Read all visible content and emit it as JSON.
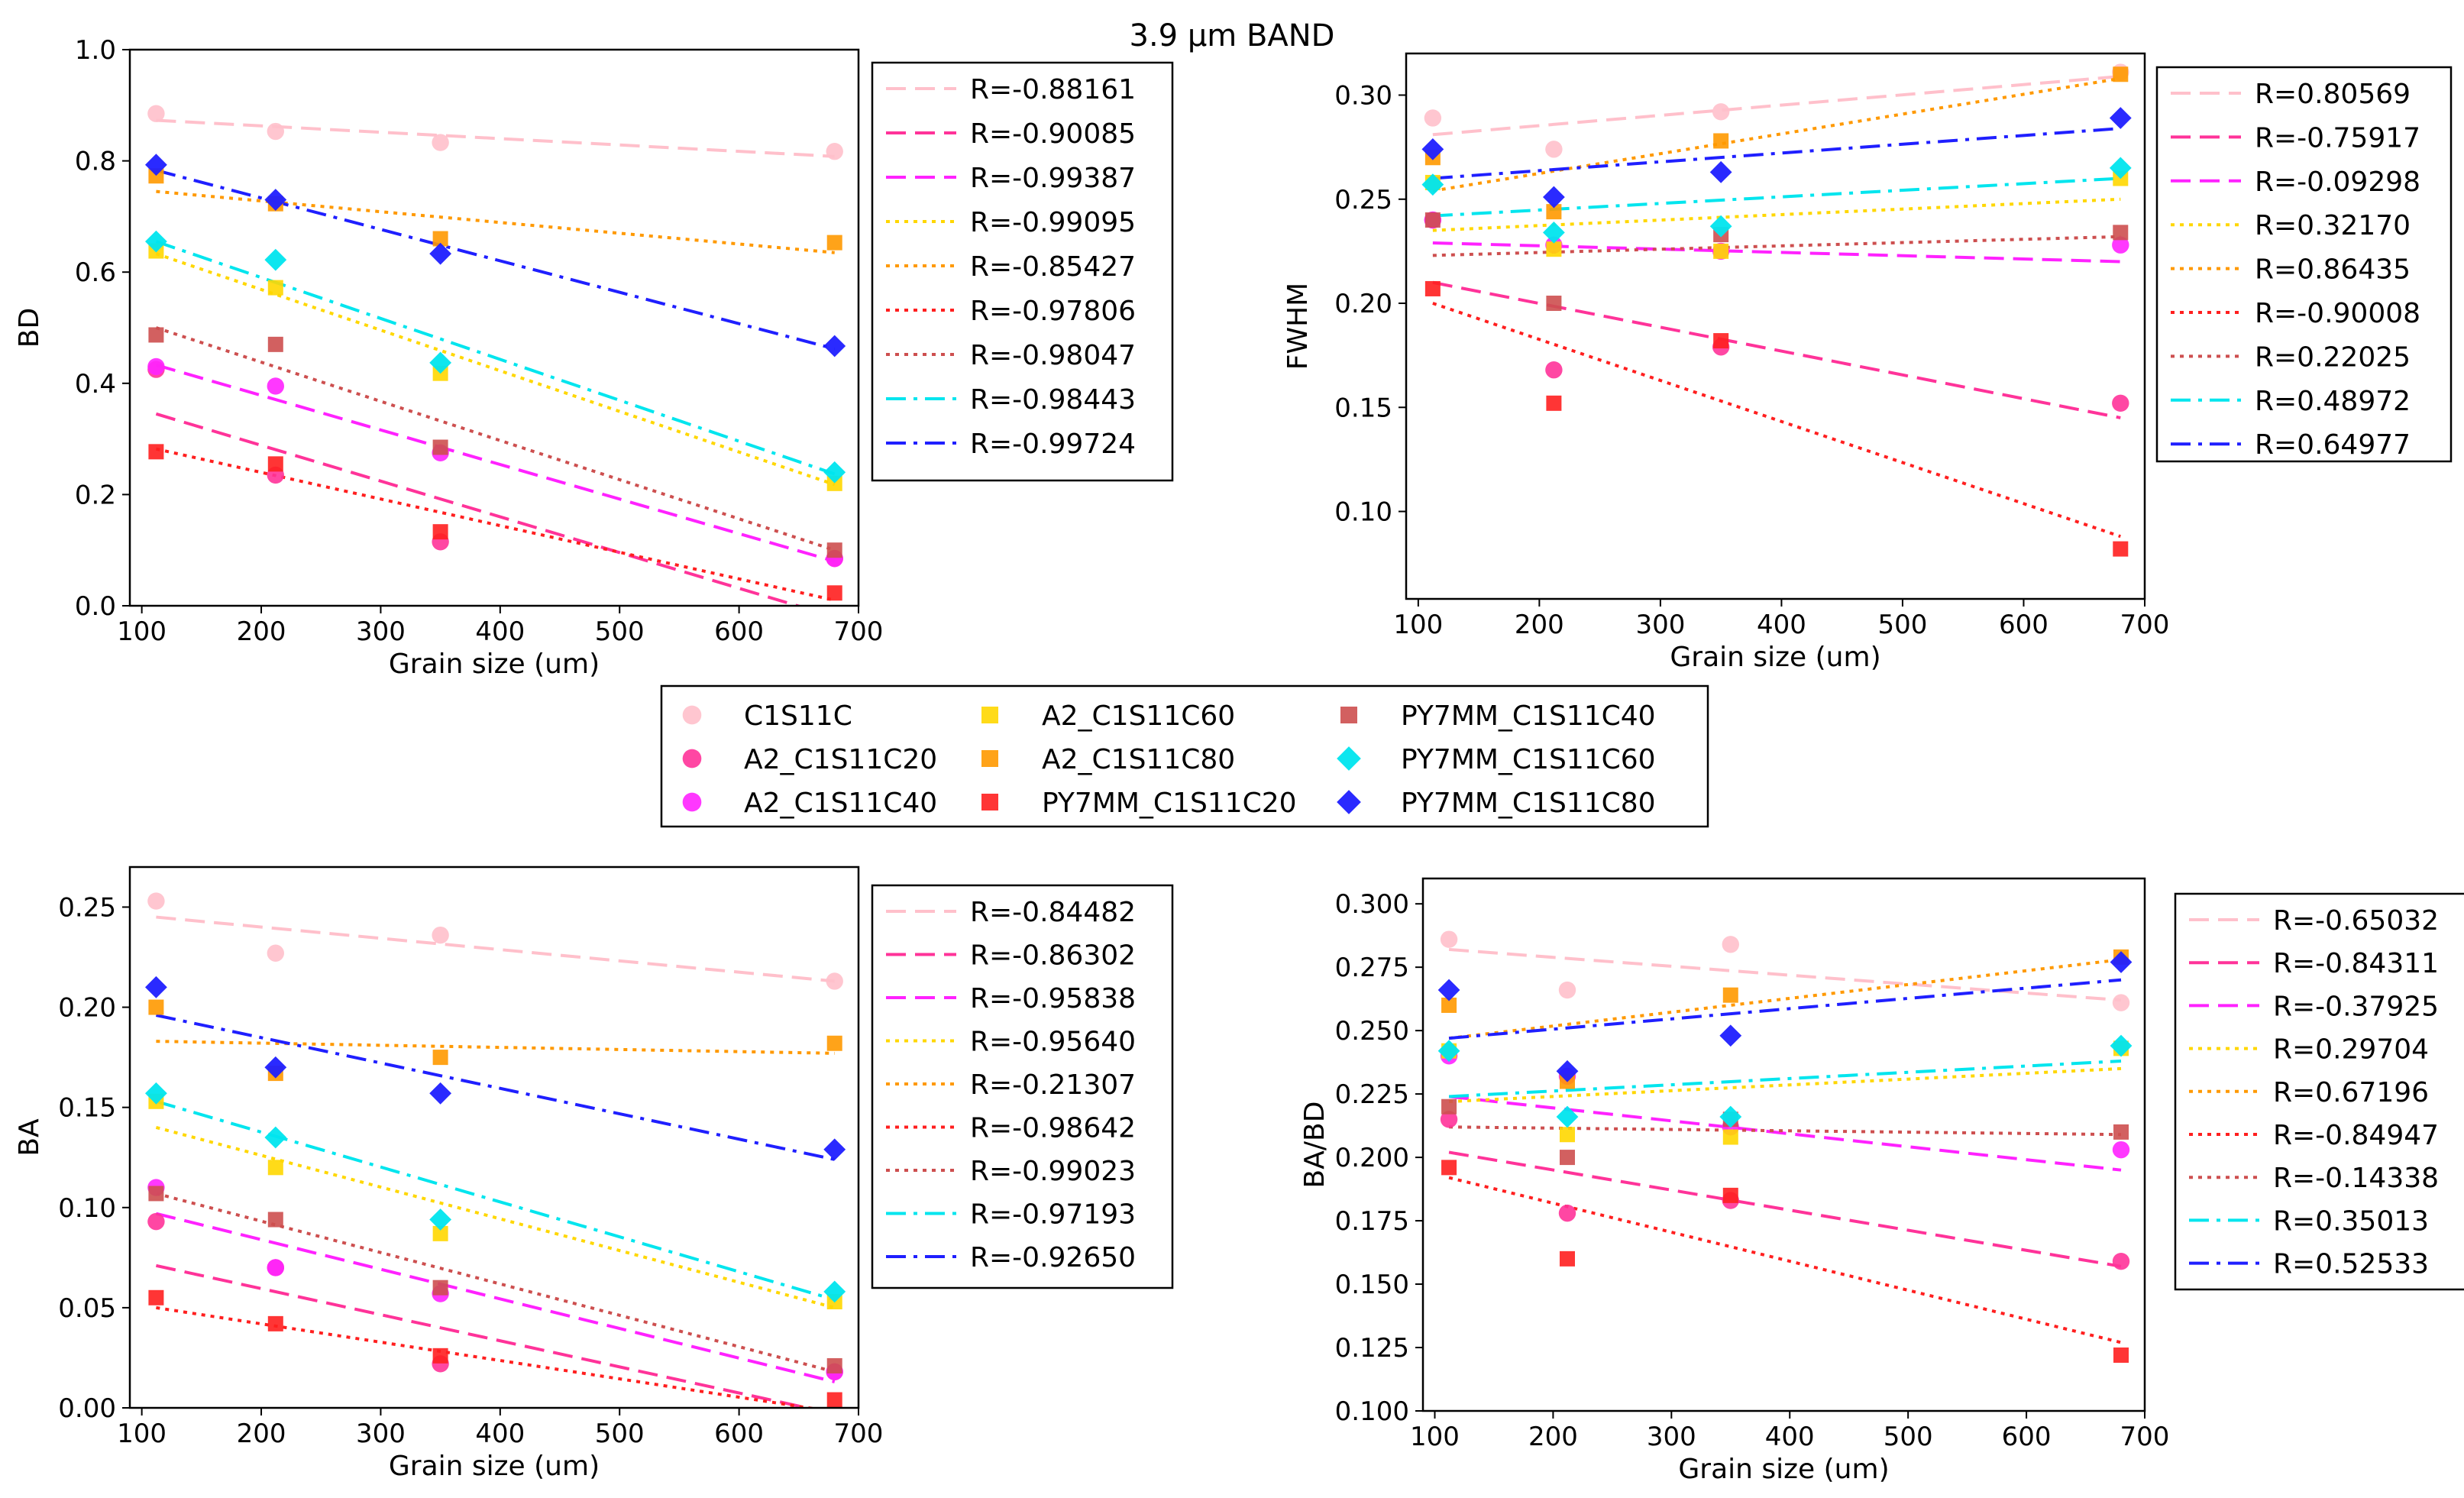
{
  "title": "3.9 µm BAND",
  "series_meta": [
    {
      "name": "C1S11C",
      "color": "#FFC0CB",
      "marker": "circle",
      "line": "dash"
    },
    {
      "name": "A2_C1S11C20",
      "color": "#FF3399",
      "marker": "circle",
      "line": "dash"
    },
    {
      "name": "A2_C1S11C40",
      "color": "#FF22FF",
      "marker": "circle",
      "line": "dash"
    },
    {
      "name": "A2_C1S11C60",
      "color": "#FFD700",
      "marker": "square",
      "line": "dot"
    },
    {
      "name": "A2_C1S11C80",
      "color": "#FF9900",
      "marker": "square",
      "line": "dot"
    },
    {
      "name": "PY7MM_C1S11C20",
      "color": "#FF1F1F",
      "marker": "square",
      "line": "dot"
    },
    {
      "name": "PY7MM_C1S11C40",
      "color": "#CD4F4F",
      "marker": "square",
      "line": "dot"
    },
    {
      "name": "PY7MM_C1S11C60",
      "color": "#00E5EE",
      "marker": "diamond",
      "line": "dashdot"
    },
    {
      "name": "PY7MM_C1S11C80",
      "color": "#1F1FFF",
      "marker": "diamond",
      "line": "dashdot"
    }
  ],
  "chart_data": [
    {
      "type": "scatter",
      "xlabel": "Grain size (um)",
      "ylabel": "BD",
      "xlim": [
        90,
        700
      ],
      "ylim": [
        0,
        1.0
      ],
      "xticks": [
        "100",
        "200",
        "300",
        "400",
        "500",
        "600",
        "700"
      ],
      "yticks": [
        "0.0",
        "0.2",
        "0.4",
        "0.6",
        "0.8",
        "1.0"
      ],
      "ytick_values": [
        0,
        0.2,
        0.4,
        0.6,
        0.8,
        1.0
      ],
      "x": [
        112,
        212,
        350,
        680
      ],
      "series": [
        {
          "name": "C1S11C",
          "values": [
            0.885,
            0.853,
            0.833,
            0.817
          ],
          "fit": [
            0.873,
            0.808
          ],
          "r": "R=-0.88161"
        },
        {
          "name": "A2_C1S11C20",
          "values": [
            0.425,
            0.235,
            0.115,
            0.085
          ],
          "fit": [
            0.345,
            -0.02
          ],
          "r": "R=-0.90085"
        },
        {
          "name": "A2_C1S11C40",
          "values": [
            0.43,
            0.395,
            0.275,
            0.085
          ],
          "fit": [
            0.433,
            0.08
          ],
          "r": "R=-0.99387"
        },
        {
          "name": "A2_C1S11C60",
          "values": [
            0.638,
            0.572,
            0.418,
            0.22
          ],
          "fit": [
            0.633,
            0.218
          ],
          "r": "R=-0.99095"
        },
        {
          "name": "A2_C1S11C80",
          "values": [
            0.773,
            0.723,
            0.66,
            0.653
          ],
          "fit": [
            0.745,
            0.635
          ],
          "r": "R=-0.85427"
        },
        {
          "name": "PY7MM_C1S11C20",
          "values": [
            0.277,
            0.255,
            0.133,
            0.023
          ],
          "fit": [
            0.282,
            0.01
          ],
          "r": "R=-0.97806"
        },
        {
          "name": "PY7MM_C1S11C40",
          "values": [
            0.487,
            0.47,
            0.285,
            0.1
          ],
          "fit": [
            0.5,
            0.1
          ],
          "r": "R=-0.98047"
        },
        {
          "name": "PY7MM_C1S11C60",
          "values": [
            0.655,
            0.622,
            0.437,
            0.24
          ],
          "fit": [
            0.655,
            0.237
          ],
          "r": "R=-0.98443"
        },
        {
          "name": "PY7MM_C1S11C80",
          "values": [
            0.793,
            0.73,
            0.633,
            0.467
          ],
          "fit": [
            0.783,
            0.462
          ],
          "r": "R=-0.99724"
        }
      ]
    },
    {
      "type": "scatter",
      "xlabel": "Grain size (um)",
      "ylabel": "FWHM",
      "xlim": [
        90,
        700
      ],
      "ylim": [
        0.058,
        0.32
      ],
      "xticks": [
        "100",
        "200",
        "300",
        "400",
        "500",
        "600",
        "700"
      ],
      "yticks": [
        "0.10",
        "0.15",
        "0.20",
        "0.25",
        "0.30"
      ],
      "ytick_values": [
        0.1,
        0.15,
        0.2,
        0.25,
        0.3
      ],
      "x": [
        112,
        212,
        350,
        680
      ],
      "series": [
        {
          "name": "C1S11C",
          "values": [
            0.289,
            0.274,
            0.292,
            0.311
          ],
          "fit": [
            0.281,
            0.309
          ],
          "r": "R=0.80569"
        },
        {
          "name": "A2_C1S11C20",
          "values": [
            0.24,
            0.168,
            0.179,
            0.152
          ],
          "fit": [
            0.21,
            0.145
          ],
          "r": "R=-0.75917"
        },
        {
          "name": "A2_C1S11C40",
          "values": [
            0.24,
            0.228,
            0.225,
            0.228
          ],
          "fit": [
            0.229,
            0.22
          ],
          "r": "R=-0.09298"
        },
        {
          "name": "A2_C1S11C60",
          "values": [
            0.258,
            0.226,
            0.225,
            0.26
          ],
          "fit": [
            0.235,
            0.25
          ],
          "r": "R=0.32170"
        },
        {
          "name": "A2_C1S11C80",
          "values": [
            0.27,
            0.244,
            0.278,
            0.31
          ],
          "fit": [
            0.254,
            0.308
          ],
          "r": "R=0.86435"
        },
        {
          "name": "PY7MM_C1S11C20",
          "values": [
            0.207,
            0.152,
            0.182,
            0.082
          ],
          "fit": [
            0.2,
            0.088
          ],
          "r": "R=-0.90008"
        },
        {
          "name": "PY7MM_C1S11C40",
          "values": [
            0.24,
            0.2,
            0.233,
            0.234
          ],
          "fit": [
            0.223,
            0.232
          ],
          "r": "R=0.22025"
        },
        {
          "name": "PY7MM_C1S11C60",
          "values": [
            0.257,
            0.234,
            0.237,
            0.265
          ],
          "fit": [
            0.242,
            0.26
          ],
          "r": "R=0.48972"
        },
        {
          "name": "PY7MM_C1S11C80",
          "values": [
            0.274,
            0.251,
            0.263,
            0.289
          ],
          "fit": [
            0.26,
            0.284
          ],
          "r": "R=0.64977"
        }
      ]
    },
    {
      "type": "scatter",
      "xlabel": "Grain size (um)",
      "ylabel": "BA",
      "xlim": [
        90,
        700
      ],
      "ylim": [
        0,
        0.27
      ],
      "xticks": [
        "100",
        "200",
        "300",
        "400",
        "500",
        "600",
        "700"
      ],
      "yticks": [
        "0.00",
        "0.05",
        "0.10",
        "0.15",
        "0.20",
        "0.25"
      ],
      "ytick_values": [
        0,
        0.05,
        0.1,
        0.15,
        0.2,
        0.25
      ],
      "x": [
        112,
        212,
        350,
        680
      ],
      "series": [
        {
          "name": "C1S11C",
          "values": [
            0.253,
            0.227,
            0.236,
            0.213
          ],
          "fit": [
            0.245,
            0.213
          ],
          "r": "R=-0.84482"
        },
        {
          "name": "A2_C1S11C20",
          "values": [
            0.093,
            0.07,
            0.022,
            0.018
          ],
          "fit": [
            0.071,
            -0.003
          ],
          "r": "R=-0.86302"
        },
        {
          "name": "A2_C1S11C40",
          "values": [
            0.11,
            0.07,
            0.057,
            0.018
          ],
          "fit": [
            0.097,
            0.013
          ],
          "r": "R=-0.95838"
        },
        {
          "name": "A2_C1S11C60",
          "values": [
            0.153,
            0.12,
            0.087,
            0.053
          ],
          "fit": [
            0.14,
            0.05
          ],
          "r": "R=-0.95640"
        },
        {
          "name": "A2_C1S11C80",
          "values": [
            0.2,
            0.167,
            0.175,
            0.182
          ],
          "fit": [
            0.183,
            0.177
          ],
          "r": "R=-0.21307"
        },
        {
          "name": "PY7MM_C1S11C20",
          "values": [
            0.055,
            0.042,
            0.026,
            0.004
          ],
          "fit": [
            0.05,
            -0.002
          ],
          "r": "R=-0.98642"
        },
        {
          "name": "PY7MM_C1S11C40",
          "values": [
            0.107,
            0.094,
            0.06,
            0.021
          ],
          "fit": [
            0.107,
            0.018
          ],
          "r": "R=-0.99023"
        },
        {
          "name": "PY7MM_C1S11C60",
          "values": [
            0.157,
            0.135,
            0.094,
            0.058
          ],
          "fit": [
            0.153,
            0.054
          ],
          "r": "R=-0.97193"
        },
        {
          "name": "PY7MM_C1S11C80",
          "values": [
            0.21,
            0.17,
            0.157,
            0.129
          ],
          "fit": [
            0.196,
            0.124
          ],
          "r": "R=-0.92650"
        }
      ]
    },
    {
      "type": "scatter",
      "xlabel": "Grain size (um)",
      "ylabel": "BA/BD",
      "xlim": [
        90,
        700
      ],
      "ylim": [
        0.1,
        0.31
      ],
      "xticks": [
        "100",
        "200",
        "300",
        "400",
        "500",
        "600",
        "700"
      ],
      "yticks": [
        "0.100",
        "0.125",
        "0.150",
        "0.175",
        "0.200",
        "0.225",
        "0.250",
        "0.275",
        "0.300"
      ],
      "ytick_values": [
        0.1,
        0.125,
        0.15,
        0.175,
        0.2,
        0.225,
        0.25,
        0.275,
        0.3
      ],
      "x": [
        112,
        212,
        350,
        680
      ],
      "series": [
        {
          "name": "C1S11C",
          "values": [
            0.286,
            0.266,
            0.284,
            0.261
          ],
          "fit": [
            0.282,
            0.262
          ],
          "r": "R=-0.65032"
        },
        {
          "name": "A2_C1S11C20",
          "values": [
            0.215,
            0.178,
            0.183,
            0.159
          ],
          "fit": [
            0.202,
            0.157
          ],
          "r": "R=-0.84311"
        },
        {
          "name": "A2_C1S11C40",
          "values": [
            0.24,
            0.232,
            0.212,
            0.203
          ],
          "fit": [
            0.224,
            0.195
          ],
          "r": "R=-0.37925"
        },
        {
          "name": "A2_C1S11C60",
          "values": [
            0.242,
            0.209,
            0.208,
            0.243
          ],
          "fit": [
            0.222,
            0.235
          ],
          "r": "R=0.29704"
        },
        {
          "name": "A2_C1S11C80",
          "values": [
            0.26,
            0.23,
            0.264,
            0.279
          ],
          "fit": [
            0.247,
            0.278
          ],
          "r": "R=0.67196"
        },
        {
          "name": "PY7MM_C1S11C20",
          "values": [
            0.196,
            0.16,
            0.185,
            0.122
          ],
          "fit": [
            0.192,
            0.127
          ],
          "r": "R=-0.84947"
        },
        {
          "name": "PY7MM_C1S11C40",
          "values": [
            0.22,
            0.2,
            0.215,
            0.21
          ],
          "fit": [
            0.212,
            0.209
          ],
          "r": "R=-0.14338"
        },
        {
          "name": "PY7MM_C1S11C60",
          "values": [
            0.242,
            0.216,
            0.216,
            0.244
          ],
          "fit": [
            0.224,
            0.238
          ],
          "r": "R=0.35013"
        },
        {
          "name": "PY7MM_C1S11C80",
          "values": [
            0.266,
            0.234,
            0.248,
            0.277
          ],
          "fit": [
            0.247,
            0.27
          ],
          "r": "R=0.52533"
        }
      ]
    }
  ]
}
